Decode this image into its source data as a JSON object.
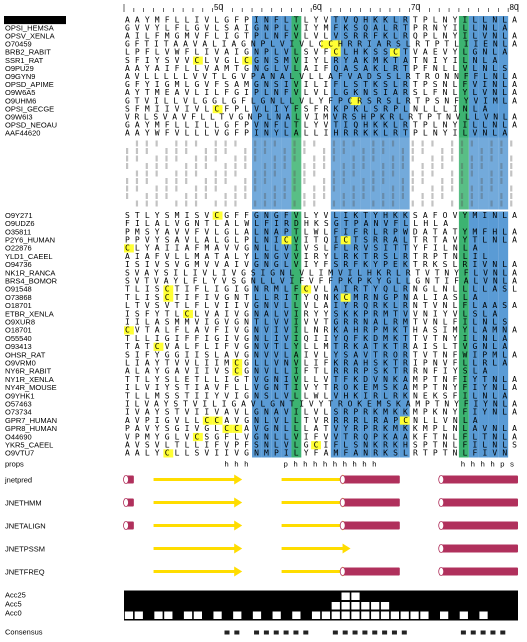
{
  "ruler": {
    "ticks": [
      "50",
      "60",
      "70",
      "80"
    ]
  },
  "query_label": "OPSD_SHEEP",
  "block1": {
    "names": [
      "OPSD_SHEEP",
      "OPSI_HEMSA",
      "OPSV_XENLA",
      "O70459",
      "BRB2_RABIT",
      "SSR1_RAT",
      "O9PU29",
      "O9GYN9",
      "OPSD_APIME",
      "O9W6A5",
      "O9UHM6",
      "OPSI_GECGE",
      "O9W6I3",
      "OPSD_NEOAU",
      "AAF44620"
    ],
    "seqs": [
      "AAYMFLLIVLGFPINFLTLYVTVQHKKLRTPLNYILLNLA",
      "GVVYLFLGVLSAIGNPLVIYMFKSQALRTPRNYILLNLA",
      "AILFMGMVFLIGTPLNFVLVLVSRRFKLRQPLNYILVNLA",
      "GFTITAAVALIAGNPLVIVLCCHRRIARSLRTPTLIIENLA",
      "LPFLVWFLIVAIGNPLVLSVFCLHKSSCTVAEVYLGNLA",
      "SFIYSVVCLVGLCGNSMVIYLRYAKMKTATNIYILNLA",
      "AAYAIFLLVAMTGNGLVLAIFQASAKLRTPFNLLVLNLS",
      "AVLLLLLVVTLGVPANALVLLAFVADSSLRTRONNFFLNLA",
      "GFYIGMLGVFSAMGNSIVILIFLSTKSLRTPSNLFVINLA",
      "AYTMEAVLILFGIPLNFVLVLLGKNSIARSLFNLYLVNLA",
      "GTVILLVLGGLGFLGNLLVLYFPCRSRSLRTPSNFYVIMLA",
      "SFMIIVIVLCFPLVLIYFSFRKPKLSRPLNLLLINLA",
      "VRLSVAVFLLTVGNPLNALVIMVRSHPKRLRTPTNVLLVNLA",
      "GAYMFLLILLGFPVNFLTLYVTIQHKKLRTPLNYILLNLA",
      "AAYWFVLLLVGFPINYLALLIHRRKKLRTPLNYILVNLA"
    ]
  },
  "block2": {
    "names": [
      "O9Y271",
      "O9UDZ6",
      "O35811",
      "P2Y6_HUMAN",
      "O22876",
      "YLD1_CAEEL",
      "O94736",
      "NK1R_RANCA",
      "BRS4_BOMOR",
      "O91548",
      "O73868",
      "O18701",
      "ETBR_XENLA",
      "O9XUR8",
      "O18701",
      "O55540",
      "O93413",
      "OHSR_RAT",
      "O9VRM0",
      "NY6R_RABIT",
      "NY1R_XENLA",
      "NY4R_MOUSE",
      "O9YHK1",
      "O57463",
      "O73734",
      "GPR7_HUMAN",
      "GPR8_HUMAN",
      "O44690",
      "YKR5_CAEEL",
      "O9VTU7"
    ],
    "seqs": [
      "STLYSMISVCGFFGNGFVLYVLIKTYHKKSAFOVYMINLA",
      "FILALVGNTLALWLFIRDHKSGTPANVFLLHLA",
      "PMSYAVVFVLGLALNAPTLWLFIFRLRPWDATATYMFHLA",
      "PPVYSAVLALGLPLNICVITQICTSRRALTRTAVYTLNLA",
      "CLYAIIAFMAVVGNLLVIVSLFLRVSITTYFILNLA",
      "AIAFVLLMATALYLNGVVIRYLRKTRSLRTRPTNLIL",
      "ISIVSVGMVVAIVGNGLVIYFSRFKYPEKTRKSLRIVNLA",
      "SVAYSILIVLIVGSIGNLVLIMVILHKRLRTVTNYFLVNLA",
      "SVTVAYLFLYVSGNLLVIFVFFPKPKYGLLGNTIFALVNLA",
      "TLISCTIFLIGIGNRMLFCVLAIRTYQLRNGLNLLLLASL",
      "TLISCTIFIVGNTLLRITYQNKCMRNGPNALIASLA",
      "LTVSVTLFLVIIVGNVLLVLAIYRQRKLRNTVNLFLAASA",
      "ISFYTLCLVAIVGNALVIRYYSKKPRMTVVNIYVLSLA",
      "IILASMMVIGVGNTLVVIVVTGRRNALRMTVNLFILNLS",
      "CVTALFLAVFIVGNVIVILNRKAHRPMKTHASIMYLAMNA",
      "TLLIGIFFIGIVGNLIVIQIIYQFKDMKTTVTNYILNLA",
      "TATCVALFLIFVGNVTLYLLMTRKATKTRAISLTVGNLA",
      "SIFYGGIISLAVGNVVLAIVLYSAVTRORTVTNFWIPMLA",
      "LIAYTVVLIIMCGLLVNVLIFKRAHSKTRIPNVFLLRLA",
      "ALAYGAVIIVSCGNVLLIFTLRRRPSKTRRNFIYSLA",
      "TTLYSLETLLIGTVGNIVLLVTFKDVNKAMPTNFIYTNLA",
      "ILVIYSTIAVFLLVGNTIVYTROKEMSKAMPTNYFIYNLA",
      "TLLMSSTIIYVIGNSLVLLWLVHKIRLRKNEKSFILNLA",
      "ILVAYSTVILIGAVLGNTIVYTROKEMSKAMPTNYFIYNLA",
      "IVAYSTVIIVAVLGNAVILVLSRPRKMKKMPKNYFIYNLA",
      "AVPIGVLLCCAVGNLVLLTVRRRRLRAPCNLLVNLA",
      "PAVYSGIVGLCCAVGNLLLATVYRPRKMKKMPLNLAVNLA",
      "VPMYGLVCSGFLVGNLLVIFVVTRQPKAAKFTNLFLTNLA",
      "AVSVLTLLIFVPFSNLVLGCIFLSNKRKHSPTNLFILNLS",
      "AALYCLLSVIIVGNMPILYFAMFANRKSLRTPTNLFIVN"
    ]
  },
  "props": {
    "label": "props",
    "values": "hhhphhhhhhhhhhhhhps"
  },
  "predictions": [
    {
      "label": "jnetpred"
    },
    {
      "label": "JNETHMM"
    },
    {
      "label": "JNETALIGN"
    },
    {
      "label": "JNETPSSM"
    },
    {
      "label": "JNETFREQ"
    }
  ],
  "accessibility": {
    "labels": [
      "Acc25",
      "Acc5",
      "Acc0"
    ]
  },
  "consensus": {
    "label": "Consensus"
  },
  "colors": {
    "hydrophobic_blue": "#5a9bd5",
    "conserved_green": "#3cb371",
    "cysteine_yellow": "#ffff33",
    "helix": "#b0305c",
    "strand": "#ffdd00",
    "selected": "#000000"
  }
}
